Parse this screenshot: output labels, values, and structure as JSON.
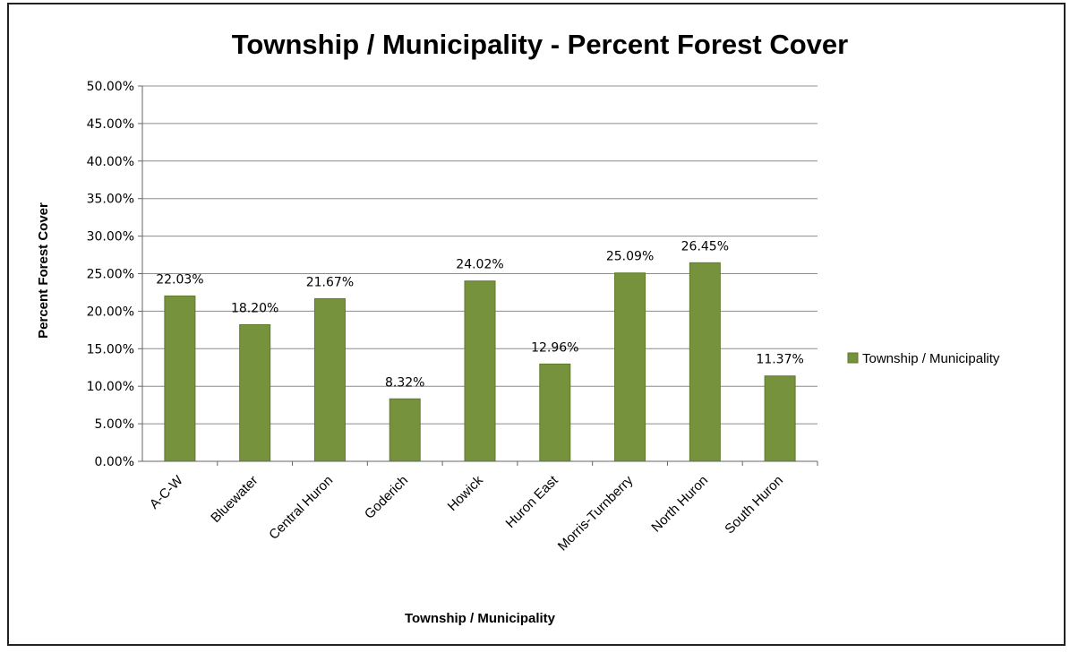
{
  "chart_data": {
    "type": "bar",
    "title": "Township / Municipality - Percent Forest Cover",
    "xlabel": "Township / Municipality",
    "ylabel": "Percent Forest Cover",
    "categories": [
      "A-C-W",
      "Bluewater",
      "Central Huron",
      "Goderich",
      "Howick",
      "Huron East",
      "Morris-Turnberry",
      "North Huron",
      "South Huron"
    ],
    "series": [
      {
        "name": "Township / Municipality",
        "values": [
          22.03,
          18.2,
          21.67,
          8.32,
          24.02,
          12.96,
          25.09,
          26.45,
          11.37
        ],
        "data_labels": [
          "22.03%",
          "18.20%",
          "21.67%",
          "8.32%",
          "24.02%",
          "12.96%",
          "25.09%",
          "26.45%",
          "11.37%"
        ]
      }
    ],
    "ylim": [
      0,
      50
    ],
    "y_ticks": [
      "0.00%",
      "5.00%",
      "10.00%",
      "15.00%",
      "20.00%",
      "25.00%",
      "30.00%",
      "35.00%",
      "40.00%",
      "45.00%",
      "50.00%"
    ],
    "grid": true,
    "legend_position": "right",
    "colors": {
      "bar": "#76923c",
      "bar_stroke": "#5f7a2c",
      "grid": "#8c8c8c"
    }
  }
}
